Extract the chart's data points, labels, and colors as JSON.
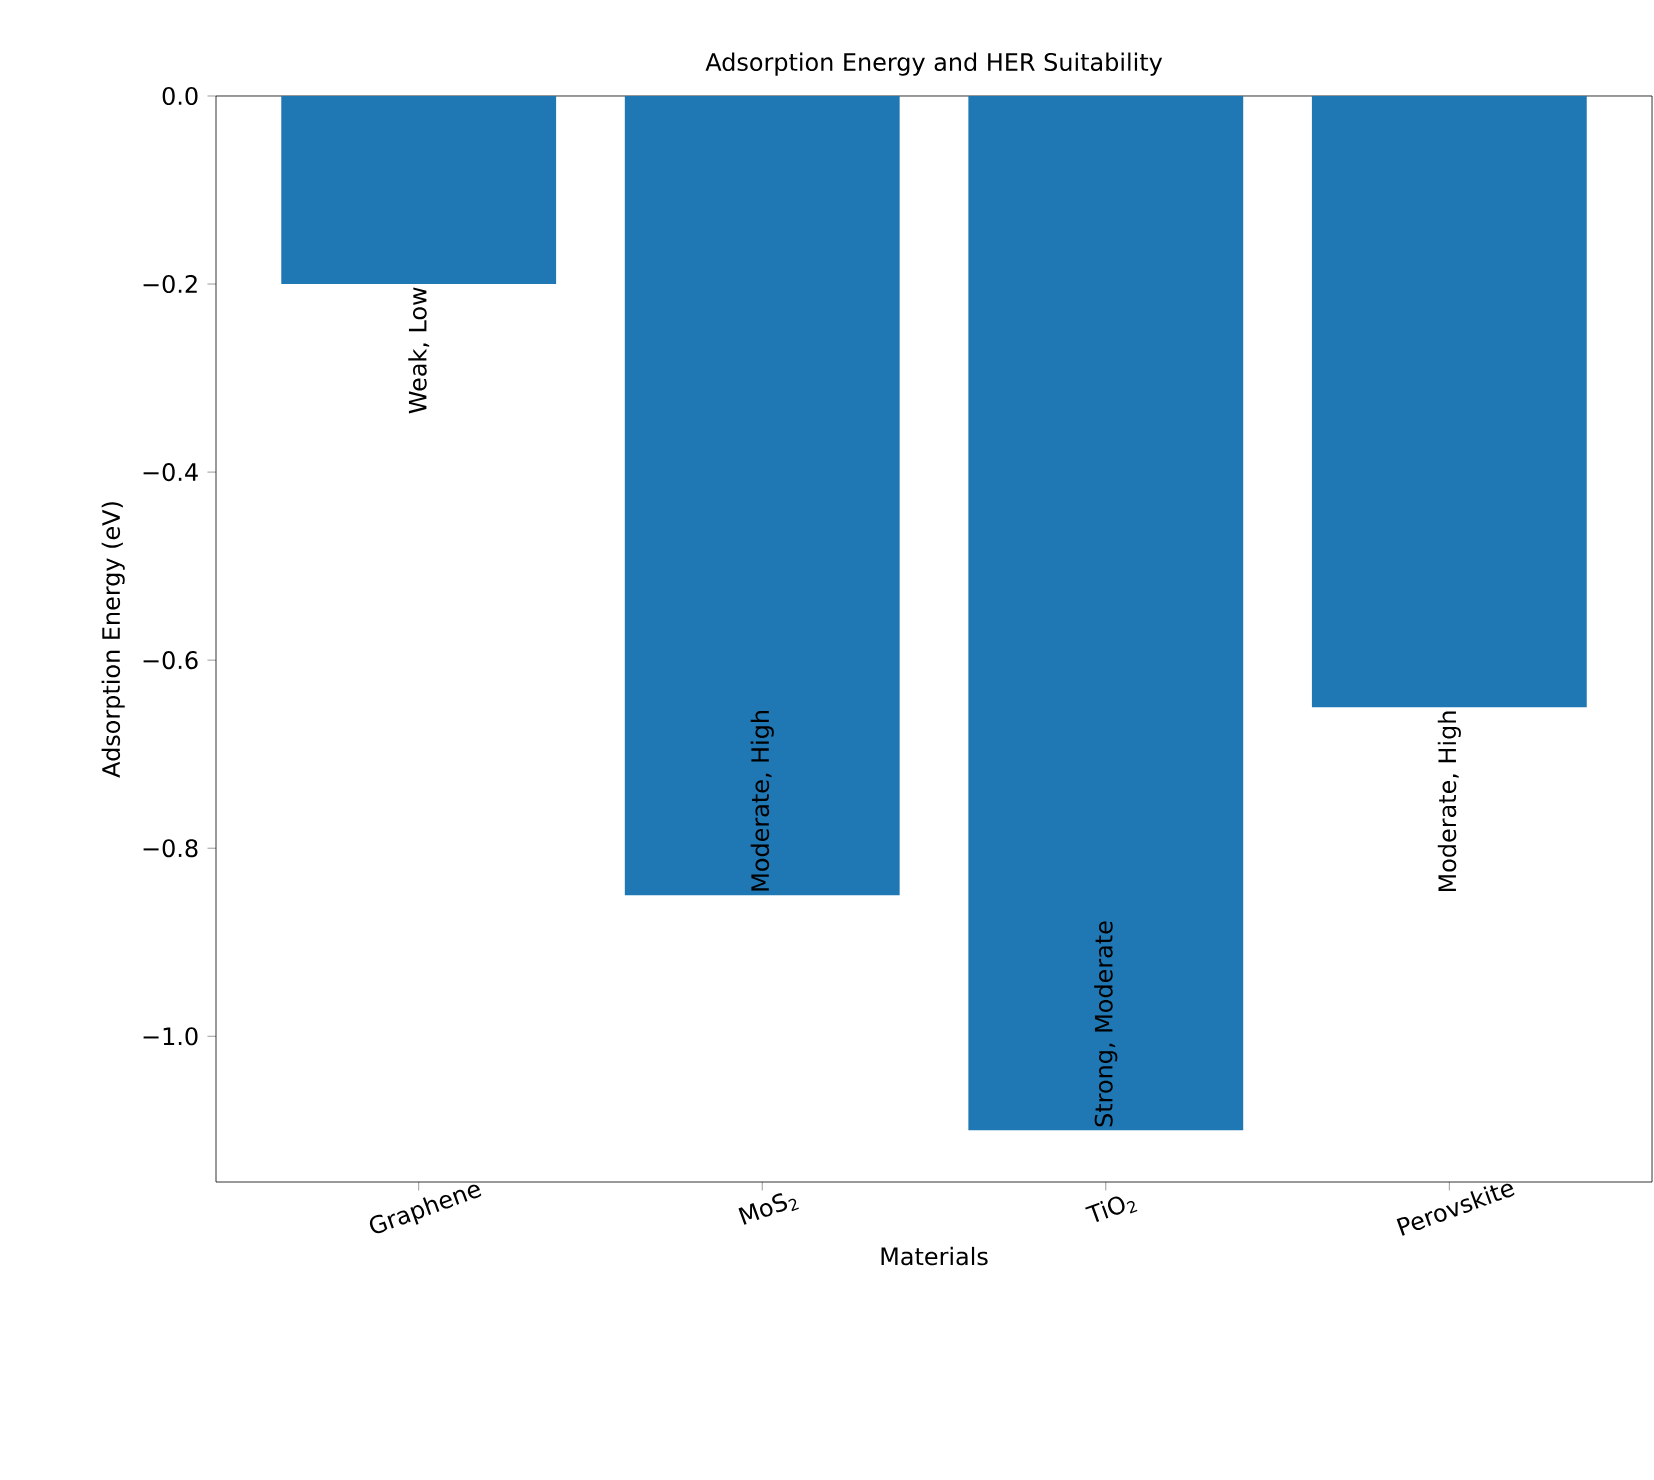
{
  "chart_data": {
    "type": "bar",
    "title": "Adsorption Energy and HER Suitability",
    "xlabel": "Materials",
    "ylabel": "Adsorption Energy (eV)",
    "categories": [
      "Graphene",
      "MoS$_{2}$",
      "TiO$_{2}$",
      "Perovskite"
    ],
    "values": [
      -0.2,
      -0.85,
      -1.1,
      -0.65
    ],
    "color": "#1f77b4",
    "ylim": [
      -1.155,
      0
    ],
    "yticks": [
      {
        "value": -1.0,
        "label": "−1.0"
      },
      {
        "value": -0.8,
        "label": "−0.8"
      },
      {
        "value": -0.6,
        "label": "−0.6"
      },
      {
        "value": -0.4,
        "label": "−0.4"
      },
      {
        "value": -0.2,
        "label": "−0.2"
      },
      {
        "value": 0,
        "label": "0.0"
      }
    ],
    "annotations": [
      {
        "text": "Weak, Low",
        "x": "Graphene",
        "y": -0.2
      },
      {
        "text": "Moderate, High",
        "x": "MoS$_{2}$",
        "y": -0.85
      },
      {
        "text": "Strong, Moderate",
        "x": "TiO$_{2}$",
        "y": -1.1
      },
      {
        "text": "Moderate, High",
        "x": "Perovskite",
        "y": -0.65
      }
    ]
  }
}
